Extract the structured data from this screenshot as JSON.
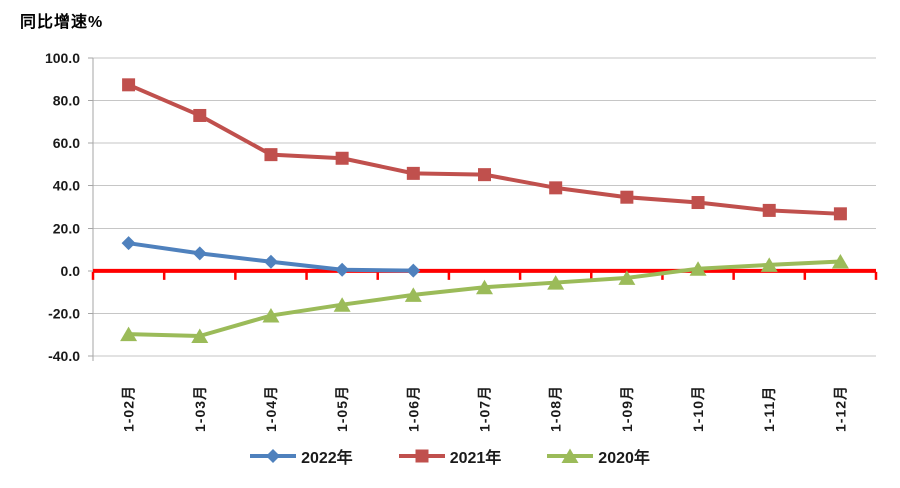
{
  "chart_data": {
    "type": "line",
    "title": "同比增速%",
    "categories": [
      "1-02月",
      "1-03月",
      "1-04月",
      "1-05月",
      "1-06月",
      "1-07月",
      "1-08月",
      "1-09月",
      "1-10月",
      "1-11月",
      "1-12月"
    ],
    "series": [
      {
        "name": "2022年",
        "color": "#4F81BD",
        "marker": "diamond",
        "values": [
          13.0,
          8.2,
          4.3,
          0.5,
          0.1
        ]
      },
      {
        "name": "2021年",
        "color": "#C0504D",
        "marker": "square",
        "values": [
          87.4,
          73.0,
          54.6,
          52.9,
          45.8,
          45.2,
          39.0,
          34.6,
          32.1,
          28.4,
          26.8
        ]
      },
      {
        "name": "2020年",
        "color": "#9BBB59",
        "marker": "triangle",
        "values": [
          -29.7,
          -30.6,
          -21.0,
          -15.9,
          -11.3,
          -7.7,
          -5.5,
          -3.3,
          1.0,
          2.8,
          4.4
        ]
      }
    ],
    "ylim": [
      -40,
      100
    ],
    "yticks": [
      "100.0",
      "80.0",
      "60.0",
      "40.0",
      "20.0",
      "0.0",
      "-20.0",
      "-40.0"
    ],
    "grid": true,
    "legend_position": "bottom",
    "zero_line_color": "#FF0000",
    "grid_color": "#C6C6C6",
    "axis_color": "#A6A6A6"
  }
}
